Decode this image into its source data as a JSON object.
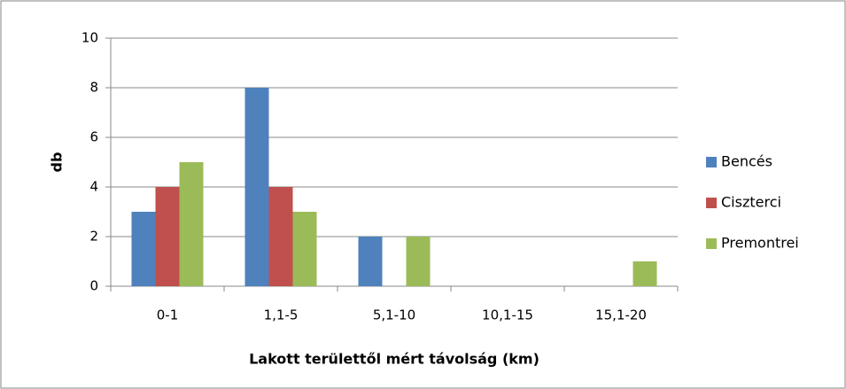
{
  "chart_data": {
    "type": "bar",
    "categories": [
      "0-1",
      "1,1-5",
      "5,1-10",
      "10,1-15",
      "15,1-20"
    ],
    "series": [
      {
        "name": "Bencés",
        "color": "#4f81bd",
        "values": [
          3,
          8,
          2,
          0,
          0
        ]
      },
      {
        "name": "Ciszterci",
        "color": "#c0504d",
        "values": [
          4,
          4,
          0,
          0,
          0
        ]
      },
      {
        "name": "Premontrei",
        "color": "#9bbb59",
        "values": [
          5,
          3,
          2,
          0,
          1
        ]
      }
    ],
    "ylim": [
      0,
      10
    ],
    "yticks": [
      0,
      2,
      4,
      6,
      8,
      10
    ],
    "grid": true,
    "ylabel": "db",
    "xlabel": "Lakott területtől mért távolság (km)",
    "legend": "right"
  }
}
